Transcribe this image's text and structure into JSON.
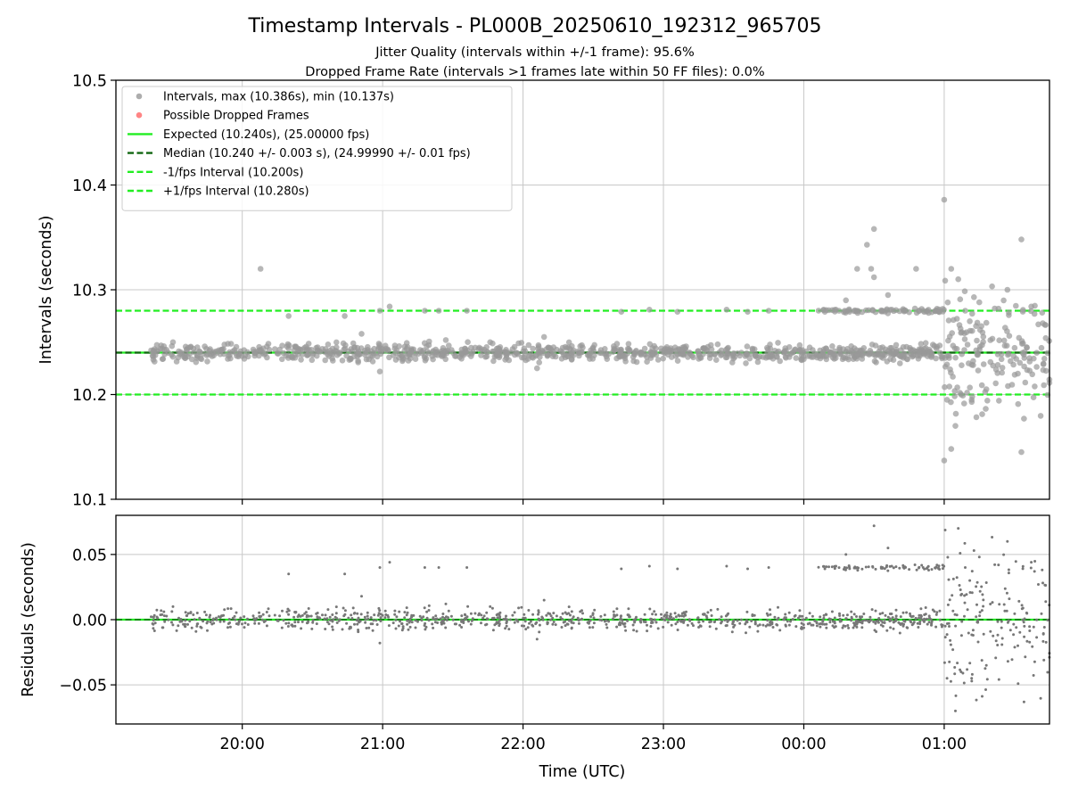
{
  "chart_data": {
    "type": "scatter",
    "title": "Timestamp Intervals - PL000B_20250610_192312_965705",
    "subtitle_1": "Jitter Quality (intervals within +/-1 frame): 95.6%",
    "subtitle_2": "Dropped Frame Rate (intervals >1 frames late within 50 FF files): 0.0%",
    "x_label": "Time (UTC)",
    "x_range_hours": [
      19.1,
      25.75
    ],
    "x_ticks": [
      {
        "value": 20,
        "label": "20:00"
      },
      {
        "value": 21,
        "label": "21:00"
      },
      {
        "value": 22,
        "label": "22:00"
      },
      {
        "value": 23,
        "label": "23:00"
      },
      {
        "value": 24,
        "label": "00:00"
      },
      {
        "value": 25,
        "label": "01:00"
      }
    ],
    "top": {
      "y_label": "Intervals (seconds)",
      "y_range": [
        10.1,
        10.5
      ],
      "y_ticks": [
        {
          "value": 10.1,
          "label": "10.1"
        },
        {
          "value": 10.2,
          "label": "10.2"
        },
        {
          "value": 10.3,
          "label": "10.3"
        },
        {
          "value": 10.4,
          "label": "10.4"
        },
        {
          "value": 10.5,
          "label": "10.5"
        }
      ],
      "lines": [
        {
          "name": "Expected (10.240s), (25.00000 fps)",
          "y": 10.24,
          "style": "solid",
          "color": "#22ee22"
        },
        {
          "name": "Median (10.240 +/- 0.003 s), (24.99990 +/- 0.01 fps)",
          "y": 10.24,
          "style": "dashed",
          "color": "#116611"
        },
        {
          "name": "-1/fps Interval (10.200s)",
          "y": 10.2,
          "style": "dashed",
          "color": "#22ee22"
        },
        {
          "name": "+1/fps Interval (10.280s)",
          "y": 10.28,
          "style": "dashed",
          "color": "#22ee22"
        }
      ],
      "legend": [
        {
          "label": "Intervals, max (10.386s), min (10.137s)",
          "kind": "dot",
          "color": "#999999"
        },
        {
          "label": "Possible Dropped Frames",
          "kind": "dot",
          "color": "#ff6666"
        },
        {
          "label": "Expected (10.240s), (25.00000 fps)",
          "kind": "solid",
          "color": "#22ee22"
        },
        {
          "label": "Median (10.240 +/- 0.003 s), (24.99990 +/- 0.01 fps)",
          "kind": "dashed",
          "color": "#116611"
        },
        {
          "label": "-1/fps Interval (10.200s)",
          "kind": "dashed",
          "color": "#22ee22"
        },
        {
          "label": "+1/fps Interval (10.280s)",
          "kind": "dashed",
          "color": "#22ee22"
        }
      ],
      "legend_position": "upper-left",
      "points_color": "#999999",
      "outliers": [
        [
          20.13,
          10.32
        ],
        [
          20.33,
          10.275
        ],
        [
          20.73,
          10.275
        ],
        [
          20.85,
          10.258
        ],
        [
          20.98,
          10.28
        ],
        [
          21.05,
          10.284
        ],
        [
          21.3,
          10.28
        ],
        [
          21.4,
          10.28
        ],
        [
          21.6,
          10.28
        ],
        [
          22.7,
          10.279
        ],
        [
          22.9,
          10.281
        ],
        [
          23.1,
          10.279
        ],
        [
          23.45,
          10.281
        ],
        [
          23.6,
          10.279
        ],
        [
          23.75,
          10.28
        ],
        [
          24.15,
          10.279
        ],
        [
          24.3,
          10.29
        ],
        [
          24.38,
          10.32
        ],
        [
          24.45,
          10.343
        ],
        [
          24.5,
          10.358
        ],
        [
          24.48,
          10.32
        ],
        [
          24.5,
          10.312
        ],
        [
          24.6,
          10.295
        ],
        [
          24.8,
          10.32
        ],
        [
          24.85,
          10.28
        ],
        [
          25.0,
          10.386
        ],
        [
          25.05,
          10.32
        ],
        [
          25.1,
          10.31
        ],
        [
          25.15,
          10.28
        ],
        [
          25.25,
          10.288
        ],
        [
          25.45,
          10.3
        ],
        [
          25.55,
          10.348
        ],
        [
          25.55,
          10.145
        ],
        [
          25.0,
          10.137
        ],
        [
          25.05,
          10.148
        ],
        [
          25.08,
          10.17
        ],
        [
          25.02,
          10.195
        ],
        [
          25.12,
          10.2
        ],
        [
          25.2,
          10.198
        ],
        [
          25.3,
          10.205
        ],
        [
          20.98,
          10.222
        ],
        [
          22.1,
          10.225
        ],
        [
          21.45,
          10.252
        ],
        [
          22.15,
          10.255
        ]
      ],
      "cluster_segments": [
        {
          "x0": 19.35,
          "x1": 25.0,
          "spread": 0.004,
          "n": 900
        },
        {
          "x0": 24.1,
          "x1": 25.0,
          "y": 10.28,
          "spread": 0.0012,
          "n": 70
        },
        {
          "x0": 25.0,
          "x1": 25.75,
          "spread": 0.03,
          "n": 170
        }
      ]
    },
    "bottom": {
      "y_label": "Residuals (seconds)",
      "y_range": [
        -0.08,
        0.08
      ],
      "y_ticks": [
        {
          "value": -0.05,
          "label": "−0.05"
        },
        {
          "value": 0.0,
          "label": "0.00"
        },
        {
          "value": 0.05,
          "label": "0.05"
        }
      ],
      "points_color": "#777777",
      "zero_line_color": "#22ee22"
    }
  }
}
